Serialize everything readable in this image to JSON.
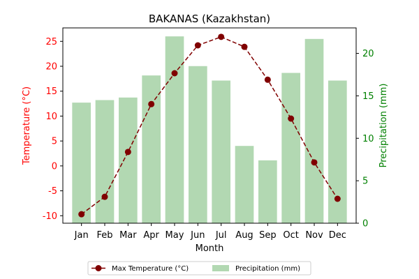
{
  "chart_data": {
    "type": "bar+line",
    "title": "BAKANAS (Kazakhstan)",
    "xlabel": "Month",
    "categories": [
      "Jan",
      "Feb",
      "Mar",
      "Apr",
      "May",
      "Jun",
      "Jul",
      "Aug",
      "Sep",
      "Oct",
      "Nov",
      "Dec"
    ],
    "left_axis": {
      "label": "Temperature (°C)",
      "color": "#ff0000",
      "ylim": [
        -11.5,
        27.7
      ],
      "ticks": [
        -10,
        -5,
        0,
        5,
        10,
        15,
        20,
        25
      ]
    },
    "right_axis": {
      "label": "Precipitation (mm)",
      "color": "#008000",
      "ylim": [
        0,
        23
      ],
      "ticks": [
        0,
        5,
        10,
        15,
        20
      ]
    },
    "series": [
      {
        "name": "Max Temperature (°C)",
        "kind": "line",
        "axis": "left",
        "color": "#800000",
        "line_style": "dashed",
        "marker": "circle",
        "values": [
          -9.7,
          -6.2,
          2.8,
          12.4,
          18.6,
          24.2,
          25.9,
          23.9,
          17.3,
          9.5,
          0.7,
          -6.6
        ]
      },
      {
        "name": "Precipitation (mm)",
        "kind": "bar",
        "axis": "right",
        "color": "#b2d8b2",
        "values": [
          14.2,
          14.5,
          14.8,
          17.4,
          22.0,
          18.5,
          16.8,
          9.1,
          7.4,
          17.7,
          21.7,
          16.8
        ]
      }
    ],
    "legend": {
      "position": "bottom-center",
      "columns": 2
    }
  }
}
